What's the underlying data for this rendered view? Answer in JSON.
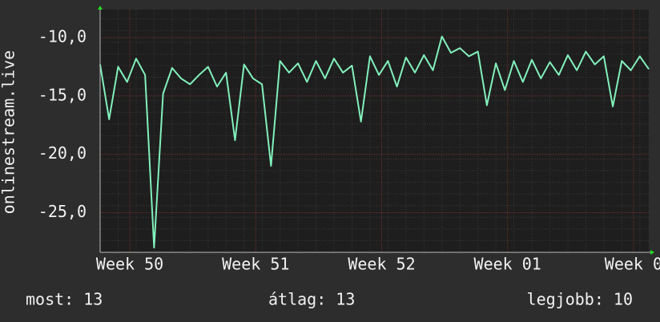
{
  "chart_data": {
    "type": "line",
    "ylabel": "onlinestream.live",
    "x": [
      0,
      0.5,
      1,
      1.5,
      2,
      2.5,
      3,
      3.5,
      4,
      4.5,
      5,
      5.5,
      6,
      6.5,
      7,
      7.5,
      8,
      8.5,
      9,
      9.5,
      10,
      10.5,
      11,
      11.5,
      12,
      12.5,
      13,
      13.5,
      14,
      14.5,
      15,
      15.5,
      16,
      16.5,
      17,
      17.5,
      18,
      18.5,
      19,
      19.5,
      20,
      20.5,
      21,
      21.5,
      22,
      22.5,
      23,
      23.5,
      24,
      24.5,
      25,
      25.5,
      26,
      26.5,
      27,
      27.5,
      28,
      28.5,
      29,
      29.5,
      30,
      30.5
    ],
    "series": [
      {
        "name": "onlinestream.live",
        "color": "#82f0bb",
        "values": [
          -12.3,
          -17.0,
          -12.5,
          -13.8,
          -11.8,
          -13.2,
          -28.0,
          -14.8,
          -12.6,
          -13.5,
          -14.0,
          -13.2,
          -12.5,
          -14.2,
          -13.0,
          -18.8,
          -12.3,
          -13.5,
          -14.0,
          -21.0,
          -12.0,
          -13.0,
          -12.2,
          -13.8,
          -12.0,
          -13.5,
          -11.8,
          -13.0,
          -12.4,
          -17.2,
          -11.6,
          -13.2,
          -12.0,
          -14.2,
          -11.7,
          -13.0,
          -11.5,
          -12.8,
          -9.9,
          -11.3,
          -10.9,
          -11.6,
          -11.2,
          -15.8,
          -12.2,
          -14.5,
          -12.0,
          -13.8,
          -11.9,
          -13.5,
          -12.1,
          -13.2,
          -11.5,
          -12.8,
          -11.2,
          -12.3,
          -11.6,
          -15.9,
          -12.0,
          -12.8,
          -11.6,
          -12.7
        ]
      }
    ],
    "xlim": [
      0,
      30.5
    ],
    "xticks": [
      {
        "value": 1.65,
        "label": "Week 50"
      },
      {
        "value": 8.65,
        "label": "Week 51"
      },
      {
        "value": 15.65,
        "label": "Week 52"
      },
      {
        "value": 22.65,
        "label": "Week 01"
      },
      {
        "value": 29.65,
        "label": "Week 0"
      }
    ],
    "ylim": [
      -28.4,
      -7.6
    ],
    "yticks": [
      {
        "value": -10,
        "label": "-10,0"
      },
      {
        "value": -15,
        "label": "-15,0"
      },
      {
        "value": -20,
        "label": "-20,0"
      },
      {
        "value": -25,
        "label": "-25,0"
      }
    ],
    "grid": true,
    "footer": {
      "current": "most: 13",
      "average": "átlag: 13",
      "best": "legjobb: 10"
    }
  }
}
